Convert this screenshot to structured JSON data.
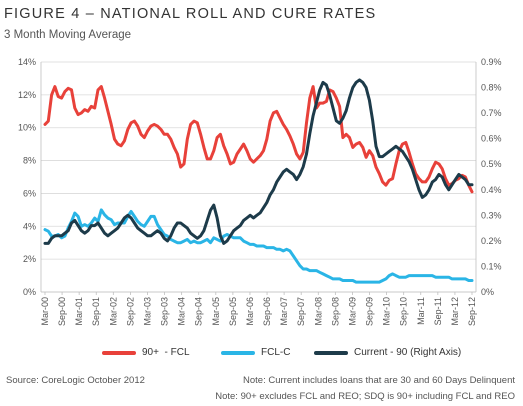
{
  "header": {
    "title": "FIGURE 4 – NATIONAL ROLL AND CURE RATES",
    "subtitle": "3 Month Moving Average"
  },
  "chart_data": {
    "type": "line",
    "title": "FIGURE 4 – NATIONAL ROLL AND CURE RATES",
    "subtitle": "3 Month Moving Average",
    "x_tick_labels": [
      "Mar-00",
      "Sep-00",
      "Mar-01",
      "Sep-01",
      "Mar-02",
      "Sep-02",
      "Mar-03",
      "Sep-03",
      "Mar-04",
      "Sep-04",
      "Mar-05",
      "Sep-05",
      "Mar-06",
      "Sep-06",
      "Mar-07",
      "Sep-07",
      "Mar-08",
      "Sep-08",
      "Mar-09",
      "Sep-09",
      "Mar-10",
      "Sep-10",
      "Mar-11",
      "Sep-11",
      "Mar-12",
      "Sep-12"
    ],
    "x_start": "Mar-00",
    "x_end": "Sep-12",
    "x_step_months": 6,
    "y_left": {
      "min": 0,
      "max": 14,
      "ticks": [
        0,
        2,
        4,
        6,
        8,
        10,
        12,
        14
      ],
      "tick_labels": [
        "0%",
        "2%",
        "4%",
        "6%",
        "8%",
        "10%",
        "12%",
        "14%"
      ]
    },
    "y_right": {
      "min": 0,
      "max": 0.9,
      "ticks": [
        0,
        0.1,
        0.2,
        0.3,
        0.4,
        0.5,
        0.6,
        0.7,
        0.8,
        0.9
      ],
      "tick_labels": [
        "0%",
        "0.1%",
        "0.2%",
        "0.3%",
        "0.4%",
        "0.5%",
        "0.6%",
        "0.7%",
        "0.8%",
        "0.9%"
      ]
    },
    "grid": "horizontal",
    "legend_position": "bottom",
    "series": [
      {
        "name": "90+ - FCL",
        "axis": "left",
        "color": "#e8413a",
        "values": [
          10.2,
          10.4,
          12.0,
          12.5,
          11.9,
          11.8,
          12.2,
          12.4,
          12.3,
          11.2,
          10.8,
          10.9,
          11.1,
          11.0,
          11.3,
          11.2,
          12.3,
          12.5,
          11.8,
          11.0,
          10.2,
          9.3,
          9.0,
          8.9,
          9.2,
          9.9,
          10.3,
          10.4,
          10.1,
          9.6,
          9.4,
          9.8,
          10.1,
          10.2,
          10.1,
          9.9,
          9.6,
          9.6,
          9.3,
          8.8,
          8.4,
          7.6,
          7.8,
          9.3,
          10.2,
          10.4,
          10.3,
          9.6,
          8.8,
          8.1,
          8.1,
          8.6,
          9.4,
          9.6,
          8.9,
          8.4,
          7.8,
          7.9,
          8.4,
          8.7,
          9.0,
          8.6,
          8.1,
          7.9,
          8.1,
          8.3,
          8.6,
          9.3,
          10.4,
          10.9,
          11.0,
          10.6,
          10.2,
          9.9,
          9.5,
          9.0,
          8.4,
          8.1,
          8.5,
          10.3,
          11.8,
          12.5,
          11.2,
          11.5,
          11.5,
          11.6,
          12.3,
          12.2,
          11.8,
          11.3,
          9.4,
          9.6,
          9.4,
          8.8,
          9.0,
          9.1,
          8.8,
          8.2,
          8.6,
          8.3,
          7.6,
          7.2,
          6.7,
          6.5,
          6.8,
          6.9,
          7.8,
          8.6,
          9.0,
          9.1,
          8.5,
          7.8,
          7.2,
          6.9,
          6.7,
          6.7,
          7.0,
          7.5,
          7.9,
          7.8,
          7.5,
          6.9,
          6.5,
          6.6,
          6.8,
          6.9,
          7.1,
          7.0,
          6.5,
          6.1
        ]
      },
      {
        "name": "FCL-C",
        "axis": "left",
        "color": "#2ab5e6",
        "values": [
          3.8,
          3.7,
          3.4,
          3.4,
          3.5,
          3.3,
          3.4,
          3.9,
          4.3,
          4.8,
          4.6,
          4.0,
          4.1,
          4.0,
          4.2,
          4.5,
          4.3,
          5.0,
          4.7,
          4.5,
          4.4,
          4.1,
          4.2,
          4.2,
          4.2,
          4.6,
          4.9,
          4.6,
          4.3,
          4.1,
          4.0,
          4.3,
          4.6,
          4.6,
          4.1,
          3.8,
          3.5,
          3.4,
          3.2,
          3.1,
          3.0,
          3.0,
          3.1,
          3.2,
          3.0,
          3.1,
          3.0,
          3.0,
          3.1,
          3.2,
          3.0,
          3.3,
          3.2,
          3.1,
          3.4,
          3.5,
          3.4,
          3.3,
          3.3,
          3.3,
          3.1,
          3.0,
          2.9,
          2.9,
          2.8,
          2.8,
          2.8,
          2.7,
          2.7,
          2.7,
          2.6,
          2.6,
          2.5,
          2.6,
          2.5,
          2.2,
          1.9,
          1.6,
          1.4,
          1.4,
          1.3,
          1.3,
          1.3,
          1.2,
          1.1,
          1.0,
          0.9,
          0.8,
          0.8,
          0.8,
          0.7,
          0.7,
          0.7,
          0.7,
          0.6,
          0.6,
          0.6,
          0.6,
          0.6,
          0.6,
          0.6,
          0.6,
          0.7,
          0.8,
          1.0,
          1.1,
          1.0,
          0.9,
          0.9,
          0.9,
          1.0,
          1.0,
          1.0,
          1.0,
          1.0,
          1.0,
          1.0,
          1.0,
          0.9,
          0.9,
          0.9,
          0.9,
          0.9,
          0.8,
          0.8,
          0.8,
          0.8,
          0.8,
          0.7,
          0.7
        ]
      },
      {
        "name": "Current - 90 (Right Axis)",
        "axis": "right",
        "color": "#1d3b4a",
        "values": [
          0.19,
          0.19,
          0.21,
          0.22,
          0.22,
          0.22,
          0.23,
          0.24,
          0.27,
          0.28,
          0.26,
          0.24,
          0.23,
          0.24,
          0.26,
          0.26,
          0.27,
          0.25,
          0.23,
          0.22,
          0.23,
          0.24,
          0.25,
          0.27,
          0.29,
          0.3,
          0.29,
          0.27,
          0.25,
          0.24,
          0.23,
          0.22,
          0.22,
          0.23,
          0.24,
          0.23,
          0.21,
          0.2,
          0.22,
          0.25,
          0.27,
          0.27,
          0.26,
          0.25,
          0.23,
          0.22,
          0.21,
          0.22,
          0.24,
          0.28,
          0.32,
          0.34,
          0.29,
          0.22,
          0.19,
          0.2,
          0.22,
          0.24,
          0.25,
          0.26,
          0.28,
          0.29,
          0.3,
          0.29,
          0.3,
          0.31,
          0.33,
          0.35,
          0.38,
          0.4,
          0.43,
          0.45,
          0.47,
          0.48,
          0.47,
          0.46,
          0.44,
          0.46,
          0.49,
          0.54,
          0.62,
          0.69,
          0.74,
          0.79,
          0.82,
          0.81,
          0.77,
          0.72,
          0.67,
          0.66,
          0.68,
          0.71,
          0.76,
          0.8,
          0.82,
          0.83,
          0.82,
          0.8,
          0.75,
          0.67,
          0.57,
          0.53,
          0.53,
          0.54,
          0.55,
          0.56,
          0.57,
          0.56,
          0.55,
          0.53,
          0.51,
          0.48,
          0.44,
          0.4,
          0.37,
          0.38,
          0.4,
          0.43,
          0.44,
          0.46,
          0.45,
          0.42,
          0.4,
          0.42,
          0.44,
          0.46,
          0.45,
          0.44,
          0.42,
          0.42
        ]
      }
    ]
  },
  "legend": {
    "items": [
      {
        "label": "90+  - FCL",
        "color": "#e8413a"
      },
      {
        "label": "FCL-C",
        "color": "#2ab5e6"
      },
      {
        "label": "Current - 90 (Right Axis)",
        "color": "#1d3b4a"
      }
    ]
  },
  "footer": {
    "source": "Source: CoreLogic October 2012",
    "note1": "Note: Current includes loans that are 30 and 60 Days Delinquent",
    "note2": "Note: 90+ excludes FCL and REO; SDQ is 90+ including FCL and REO"
  }
}
